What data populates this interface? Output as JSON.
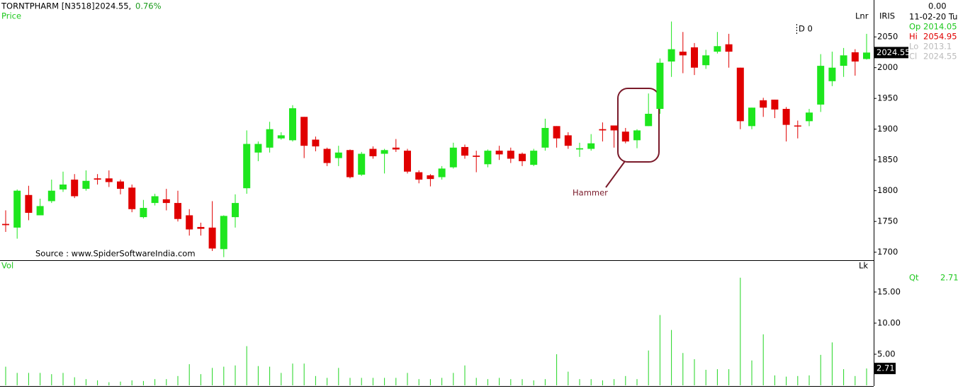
{
  "header": {
    "symbol": "TORNTPHARM [N3518]",
    "price": "2024.55,",
    "change": "0.76%"
  },
  "labels": {
    "scale_mode": "Lnr",
    "name": "IRIS",
    "d": "D 0",
    "lk": "Lk",
    "qt": "Qt"
  },
  "info": {
    "change": "0.00",
    "date": "11-02-20 Tu",
    "keys": [
      "Op",
      "Hi",
      "Lo",
      "Cl"
    ]
  },
  "source": "Source : www.SpiderSoftwareIndia.com",
  "chart_data": [
    {
      "type": "candlestick",
      "title": "Price",
      "up_color": "#1ee61e",
      "down_color": "#e00000",
      "annotation": "Hammer",
      "open": [
        1746,
        1740,
        1793,
        1760,
        1783,
        1802,
        1818,
        1803,
        1820,
        1820,
        1815,
        1805,
        1757,
        1780,
        1786,
        1780,
        1760,
        1741,
        1740,
        1705,
        1757,
        1804,
        1862,
        1870,
        1885,
        1882,
        1920,
        1883,
        1868,
        1853,
        1866,
        1826,
        1868,
        1860,
        1870,
        1865,
        1830,
        1825,
        1822,
        1838,
        1871,
        1857,
        1843,
        1865,
        1865,
        1860,
        1842,
        1870,
        1905,
        1890,
        1867,
        1868,
        1900,
        1906,
        1896,
        1882,
        1905,
        1933,
        2010,
        2026,
        2033,
        2004,
        2026,
        2038,
        2000,
        1905,
        1947,
        1948,
        1933,
        1906,
        1913,
        1940,
        1978,
        2003,
        2025,
        2014.05
      ],
      "high": [
        1768,
        1802,
        1808,
        1787,
        1818,
        1831,
        1827,
        1833,
        1827,
        1833,
        1818,
        1810,
        1785,
        1795,
        1803,
        1800,
        1770,
        1748,
        1783,
        1760,
        1794,
        1898,
        1880,
        1912,
        1895,
        1939,
        1920,
        1888,
        1870,
        1873,
        1867,
        1863,
        1872,
        1868,
        1884,
        1868,
        1833,
        1827,
        1840,
        1878,
        1875,
        1865,
        1867,
        1873,
        1870,
        1862,
        1868,
        1917,
        1905,
        1895,
        1878,
        1892,
        1911,
        1905,
        1902,
        1900,
        1958,
        2015,
        2075,
        2058,
        2040,
        2029,
        2058,
        2055,
        2000,
        1935,
        1951,
        1948,
        1936,
        1914,
        1933,
        2022,
        2026,
        2032,
        2030,
        2054.95
      ],
      "low": [
        1733,
        1722,
        1752,
        1760,
        1780,
        1798,
        1788,
        1800,
        1810,
        1806,
        1794,
        1765,
        1755,
        1776,
        1768,
        1750,
        1727,
        1727,
        1702,
        1692,
        1740,
        1795,
        1848,
        1862,
        1883,
        1880,
        1853,
        1864,
        1840,
        1840,
        1820,
        1824,
        1852,
        1828,
        1863,
        1828,
        1812,
        1807,
        1818,
        1836,
        1852,
        1830,
        1838,
        1850,
        1845,
        1840,
        1840,
        1865,
        1870,
        1868,
        1855,
        1865,
        1880,
        1870,
        1877,
        1869,
        1905,
        1925,
        1985,
        1991,
        1988,
        1998,
        2023,
        2000,
        1900,
        1900,
        1920,
        1918,
        1880,
        1885,
        1905,
        1928,
        1970,
        1985,
        1987,
        2013.1
      ],
      "close": [
        1744,
        1800,
        1764,
        1775,
        1800,
        1810,
        1791,
        1816,
        1818,
        1814,
        1803,
        1770,
        1772,
        1791,
        1780,
        1754,
        1737,
        1738,
        1706,
        1759,
        1780,
        1876,
        1876,
        1900,
        1890,
        1934,
        1873,
        1872,
        1845,
        1862,
        1822,
        1860,
        1856,
        1866,
        1867,
        1831,
        1818,
        1819,
        1836,
        1870,
        1857,
        1855,
        1865,
        1859,
        1852,
        1848,
        1865,
        1902,
        1885,
        1873,
        1869,
        1877,
        1898,
        1898,
        1880,
        1898,
        1925,
        2008,
        2030,
        2020,
        2000,
        2020,
        2035,
        2026,
        1913,
        1935,
        1935,
        1932,
        1907,
        1905,
        1927,
        2003,
        2000,
        2020,
        2010,
        2024.55
      ],
      "ylim": [
        1687,
        2110
      ],
      "yticks": [
        1700,
        1750,
        1800,
        1850,
        1900,
        1950,
        2000,
        2050
      ]
    },
    {
      "type": "bar",
      "title": "Vol",
      "color": "#22d622",
      "values": [
        3.0,
        2.0,
        2.0,
        2.0,
        1.8,
        2.0,
        1.3,
        1.0,
        0.8,
        0.5,
        0.6,
        0.8,
        0.7,
        1.0,
        1.0,
        1.5,
        3.4,
        1.8,
        2.8,
        3.0,
        3.2,
        6.3,
        3.1,
        3.0,
        2.0,
        3.5,
        3.5,
        1.5,
        1.2,
        2.8,
        1.2,
        1.2,
        1.2,
        1.2,
        1.2,
        2.0,
        1.0,
        1.0,
        1.2,
        2.0,
        3.2,
        1.2,
        1.0,
        1.2,
        1.0,
        1.0,
        0.8,
        1.0,
        5.0,
        2.2,
        1.0,
        1.0,
        0.8,
        1.0,
        1.5,
        1.0,
        5.6,
        11.3,
        8.9,
        5.2,
        4.2,
        2.5,
        2.6,
        2.6,
        17.3,
        4.0,
        8.2,
        1.6,
        1.4,
        1.5,
        1.6,
        4.9,
        6.9,
        2.6,
        1.5,
        2.71
      ],
      "ylim": [
        0,
        20
      ],
      "yticks": [
        {
          "value": 5,
          "label": "5.00"
        },
        {
          "value": 10,
          "label": "10.00"
        },
        {
          "value": 15,
          "label": "15.00"
        }
      ]
    }
  ]
}
